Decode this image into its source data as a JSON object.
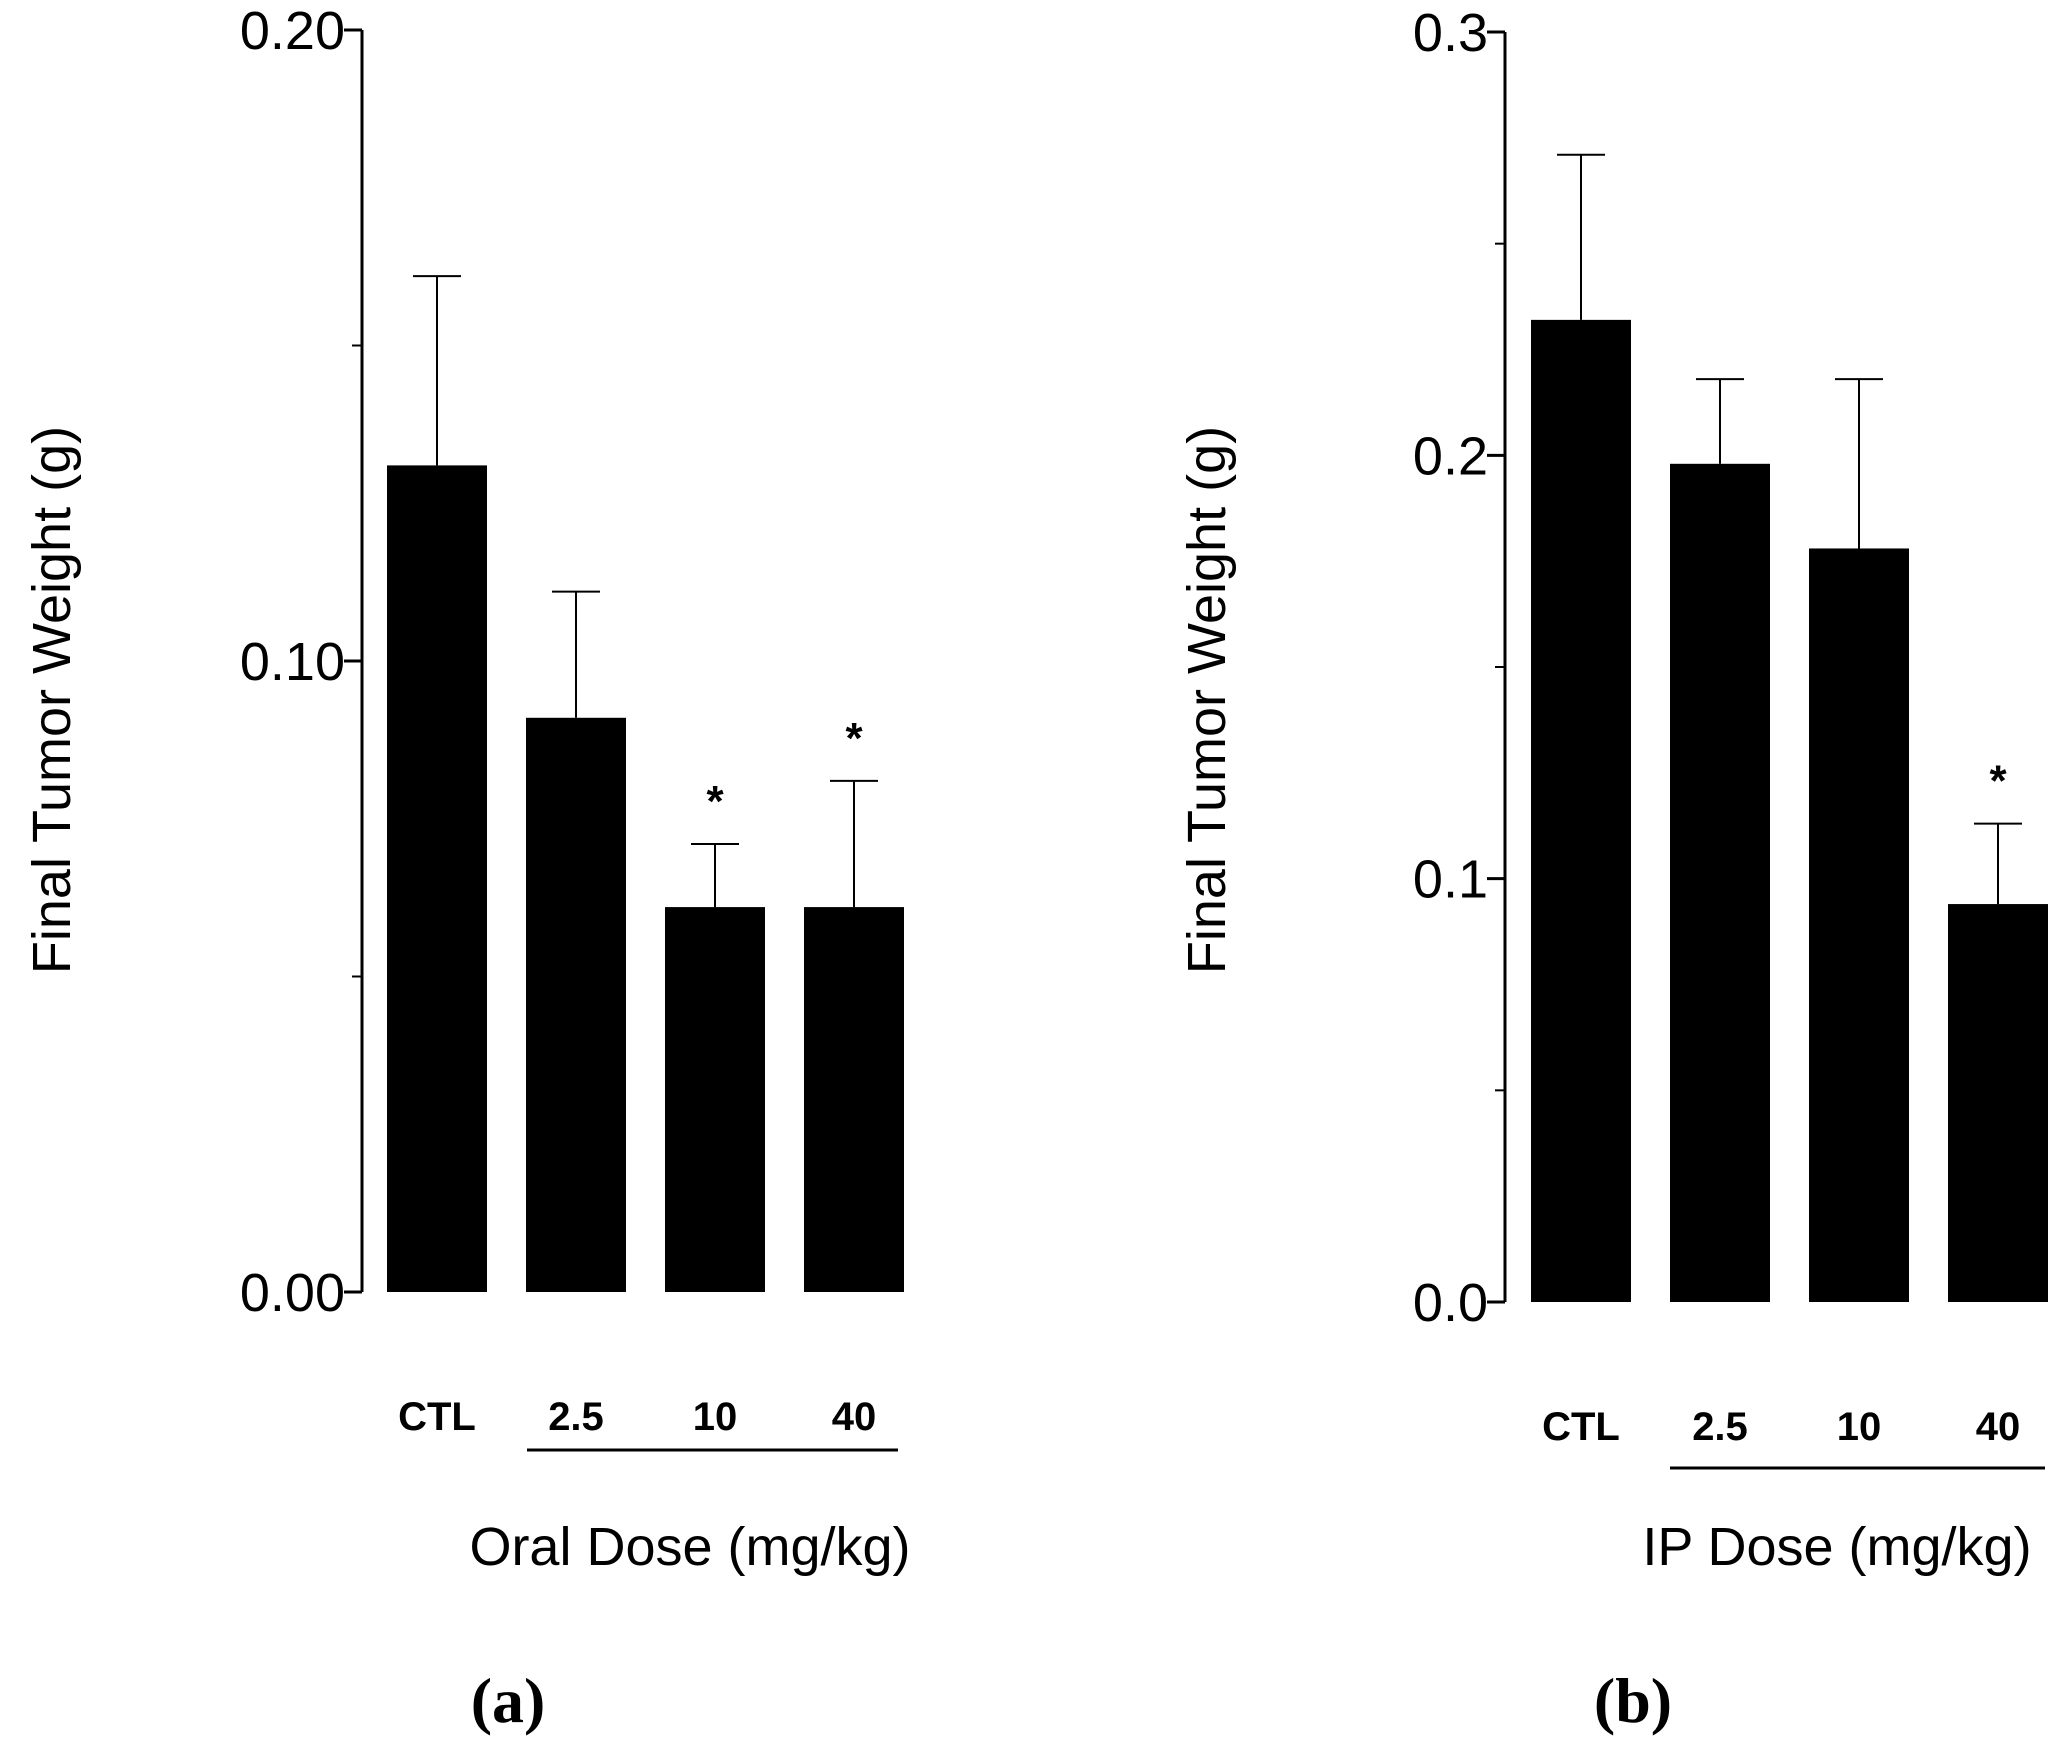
{
  "chart_data": [
    {
      "type": "bar",
      "panel_label": "(a)",
      "ylabel": "Final Tumor Weight (g)",
      "xlabel": "Oral Dose (mg/kg)",
      "categories": [
        "CTL",
        "2.5",
        "10",
        "40"
      ],
      "values": [
        0.131,
        0.091,
        0.061,
        0.061
      ],
      "errors": [
        0.03,
        0.02,
        0.01,
        0.02
      ],
      "significance": [
        "",
        "",
        "*",
        "*"
      ],
      "ylim": [
        0,
        0.2
      ],
      "major_ticks": [
        0.0,
        0.1,
        0.2
      ],
      "minor_ticks": [
        0.05,
        0.15
      ],
      "tick_labels": [
        "0.00",
        "0.10",
        "0.20"
      ],
      "bar_color": "#000000",
      "grid": false
    },
    {
      "type": "bar",
      "panel_label": "(b)",
      "ylabel": "Final Tumor Weight (g)",
      "xlabel": "IP Dose (mg/kg)",
      "categories": [
        "CTL",
        "2.5",
        "10",
        "40"
      ],
      "values": [
        0.232,
        0.198,
        0.178,
        0.094
      ],
      "errors": [
        0.039,
        0.02,
        0.04,
        0.019
      ],
      "significance": [
        "",
        "",
        "",
        "*"
      ],
      "ylim": [
        0,
        0.3
      ],
      "major_ticks": [
        0.0,
        0.1,
        0.2,
        0.3
      ],
      "minor_ticks": [
        0.05,
        0.15,
        0.25
      ],
      "tick_labels": [
        "0.0",
        "0.1",
        "0.2",
        "0.3"
      ],
      "bar_color": "#000000",
      "grid": false
    }
  ]
}
